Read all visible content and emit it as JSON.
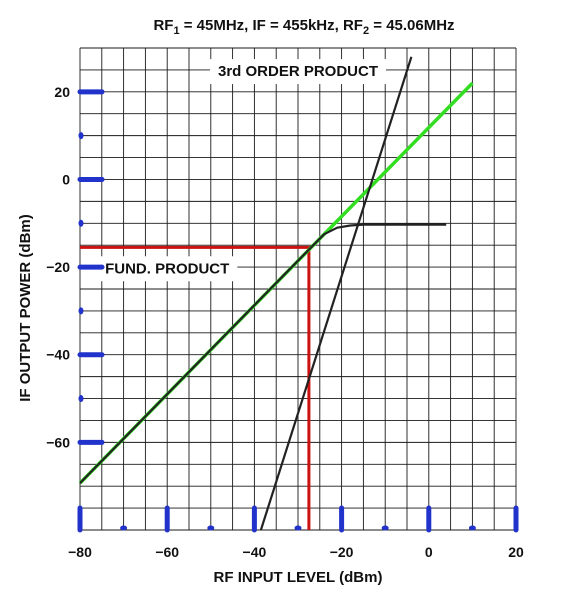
{
  "chart_data": {
    "type": "line",
    "title": {
      "p1": "RF",
      "s1": "1",
      "p2": " = 45MHz, IF = 455kHz, RF",
      "s2": "2",
      "p3": " = 45.06MHz"
    },
    "xlabel": "RF INPUT LEVEL (dBm)",
    "ylabel": "IF OUTPUT POWER (dBm)",
    "xlim": [
      -80,
      20
    ],
    "ylim": [
      -80,
      30
    ],
    "x_ticks": [
      -80,
      -60,
      -40,
      -20,
      0,
      20
    ],
    "x_tick_labels": [
      "−80",
      "−60",
      "−40",
      "−20",
      "0",
      "20"
    ],
    "y_ticks": [
      20,
      0,
      -20,
      -40,
      -60
    ],
    "y_tick_labels": [
      "20",
      "0",
      "−20",
      "−40",
      "−60"
    ],
    "grid": true,
    "grid_step_x": 5,
    "grid_step_y": 5,
    "series": [
      {
        "role": "fundamental-ideal",
        "color": "#33dd22",
        "points": [
          [
            -80,
            -69.3
          ],
          [
            10,
            22
          ]
        ]
      },
      {
        "role": "fundamental-actual",
        "color": "#222222",
        "points": [
          [
            -80,
            -69.3
          ],
          [
            -27.5,
            -16
          ],
          [
            -24,
            -12.5
          ],
          [
            -21,
            -11
          ],
          [
            -18,
            -10.5
          ],
          [
            -15,
            -10.3
          ],
          [
            4,
            -10.3
          ]
        ]
      },
      {
        "role": "third-order",
        "color": "#222222",
        "points": [
          [
            -38.5,
            -80
          ],
          [
            -4,
            28
          ]
        ]
      }
    ],
    "markers": {
      "color": "#cc1111",
      "point": [
        -27.5,
        -15.5
      ]
    },
    "annotations": [
      {
        "text": "3rd ORDER PRODUCT",
        "at": [
          -30,
          24.5
        ]
      },
      {
        "text": "FUND. PRODUCT",
        "at": [
          -60,
          -20.5
        ]
      }
    ]
  }
}
